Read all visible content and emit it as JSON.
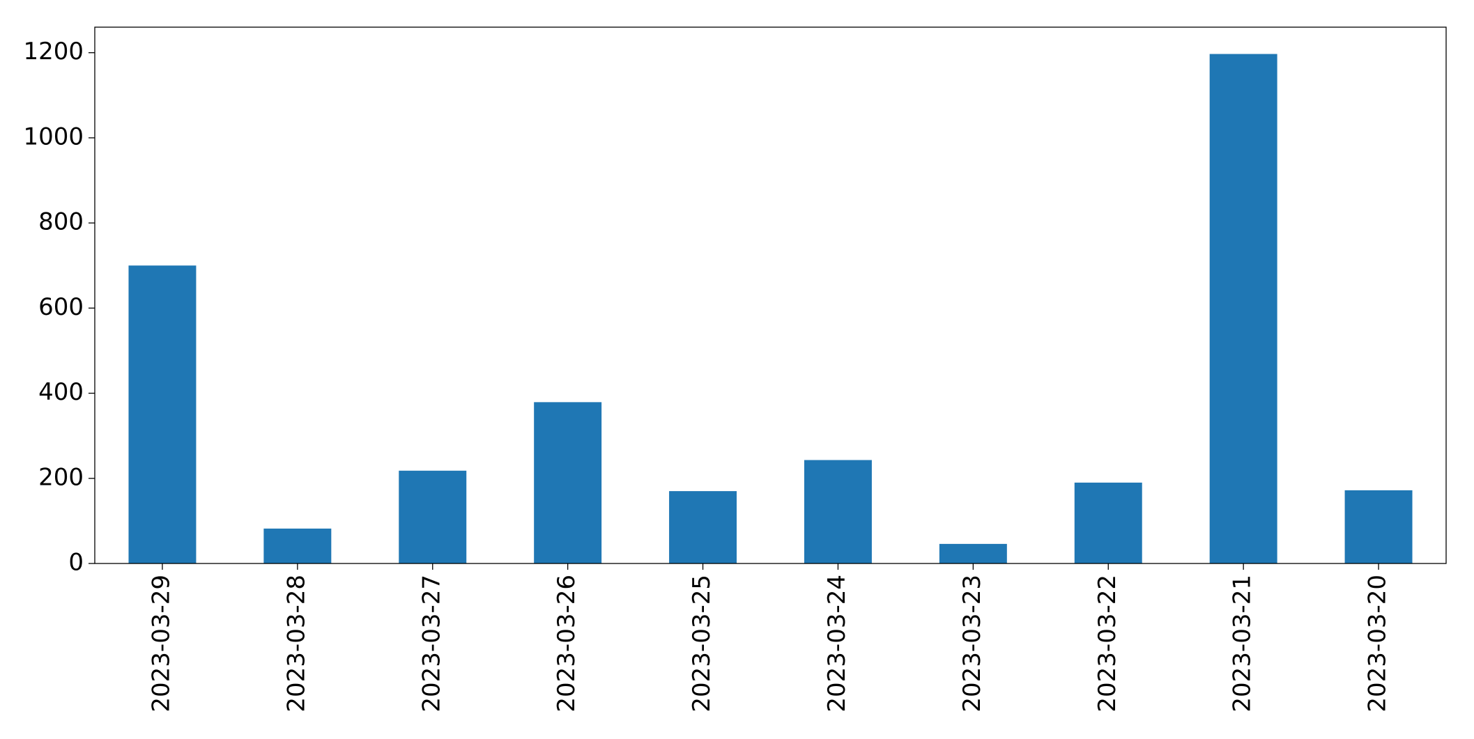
{
  "chart_data": {
    "type": "bar",
    "categories": [
      "2023-03-29",
      "2023-03-28",
      "2023-03-27",
      "2023-03-26",
      "2023-03-25",
      "2023-03-24",
      "2023-03-23",
      "2023-03-22",
      "2023-03-21",
      "2023-03-20"
    ],
    "values": [
      700,
      82,
      218,
      379,
      170,
      243,
      46,
      190,
      1197,
      172
    ],
    "color": "#1f77b4",
    "ylim": [
      0,
      1260
    ],
    "yticks": [
      0,
      200,
      400,
      600,
      800,
      1000,
      1200
    ],
    "grid": false
  }
}
